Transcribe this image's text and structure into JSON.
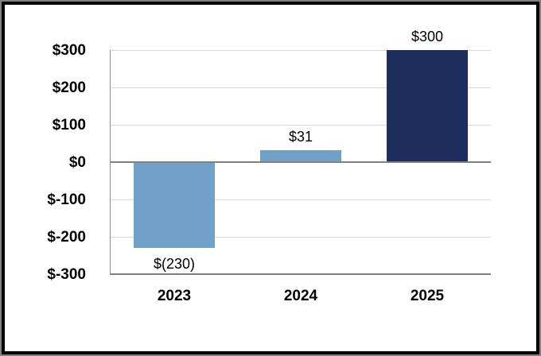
{
  "chart_data": {
    "type": "bar",
    "title": "",
    "xlabel": "",
    "ylabel": "",
    "categories": [
      "2023",
      "2024",
      "2025"
    ],
    "values": [
      -230,
      31,
      300
    ],
    "data_labels": [
      "$(230)",
      "$31",
      "$300"
    ],
    "bar_colors": [
      "#6FA2C6",
      "#6FA2C6",
      "#1F2D5C"
    ],
    "y_ticks": [
      {
        "value": 300,
        "label": "$300"
      },
      {
        "value": 200,
        "label": "$200"
      },
      {
        "value": 100,
        "label": "$100"
      },
      {
        "value": 0,
        "label": "$0"
      },
      {
        "value": -100,
        "label": "$-100"
      },
      {
        "value": -200,
        "label": "$-200"
      },
      {
        "value": -300,
        "label": "$-300"
      }
    ],
    "ylim": [
      -300,
      300
    ],
    "grid": true,
    "legend": false
  },
  "colors": {
    "background": "#FFFFFF",
    "text": "#000000",
    "gridline": "#D9D9D9",
    "axis_line": "#8E8E8E",
    "zero_line": "#7F7F7F",
    "frame_outer_gray": "#828282",
    "frame_inner_black": "#000000",
    "bar_light_blue": "#6FA2C6",
    "bar_dark_navy": "#1F2D5C"
  }
}
